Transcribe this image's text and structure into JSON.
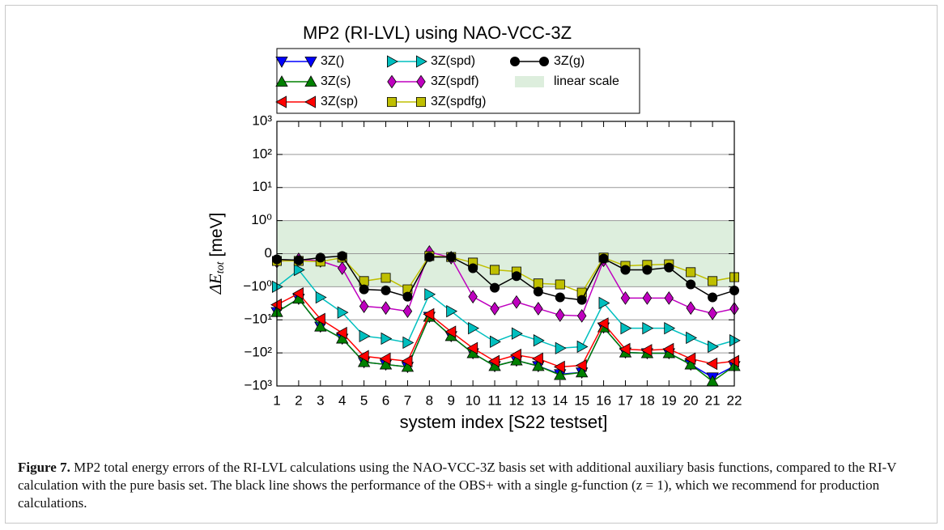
{
  "chart_data": {
    "type": "line",
    "title": "MP2 (RI-LVL) using NAO-VCC-3Z",
    "xlabel": "system index [S22 testset]",
    "ylabel": {
      "main": "ΔE",
      "sub": "tot",
      "unit": "[meV]"
    },
    "yscale": "symlog",
    "linthresh": 1,
    "grid": true,
    "x": [
      1,
      2,
      3,
      4,
      5,
      6,
      7,
      8,
      9,
      10,
      11,
      12,
      13,
      14,
      15,
      16,
      17,
      18,
      19,
      20,
      21,
      22
    ],
    "xlim": [
      1,
      22
    ],
    "xticks": [
      1,
      2,
      3,
      4,
      5,
      6,
      7,
      8,
      9,
      10,
      11,
      12,
      13,
      14,
      15,
      16,
      17,
      18,
      19,
      20,
      21,
      22
    ],
    "ylim": [
      -1000,
      1000
    ],
    "yticks": [
      {
        "value": -1000,
        "label": "−10³"
      },
      {
        "value": -100,
        "label": "−10²"
      },
      {
        "value": -10,
        "label": "−10¹"
      },
      {
        "value": -1,
        "label": "−10⁰"
      },
      0,
      {
        "value": 1,
        "label": "10⁰"
      },
      {
        "value": 10,
        "label": "10¹"
      },
      {
        "value": 100,
        "label": "10²"
      },
      {
        "value": 1000,
        "label": "10³"
      }
    ],
    "linear_region": {
      "label": "linear scale",
      "range": [
        -1,
        1
      ],
      "color": "#ddeedd"
    },
    "series": [
      {
        "name": "3Z()",
        "color": "#0000ff",
        "marker": "tri-down",
        "values": [
          -5.8,
          -2.3,
          -16,
          -37,
          -190,
          -224,
          -265,
          -8.1,
          -31,
          -102,
          -250,
          -170,
          -250,
          -440,
          -390,
          -17,
          -97,
          -102,
          -102,
          -224,
          -550,
          -250
        ]
      },
      {
        "name": "3Z(s)",
        "color": "#008000",
        "marker": "tri-up",
        "values": [
          -5.8,
          -2.3,
          -16,
          -37,
          -190,
          -224,
          -265,
          -8.1,
          -31,
          -102,
          -250,
          -170,
          -250,
          -468,
          -390,
          -17,
          -97,
          -102,
          -102,
          -224,
          -724,
          -250
        ]
      },
      {
        "name": "3Z(sp)",
        "color": "#ff0000",
        "marker": "tri-left",
        "values": [
          -3.5,
          -1.6,
          -9.5,
          -25,
          -126,
          -150,
          -178,
          -6.8,
          -23,
          -72,
          -178,
          -115,
          -150,
          -265,
          -240,
          -13,
          -77,
          -83,
          -77,
          -150,
          -213,
          -178
        ]
      },
      {
        "name": "3Z(spd)",
        "color": "#00bfbf",
        "marker": "tri-right",
        "values": [
          -1.0,
          -0.49,
          -2.1,
          -6.0,
          -31,
          -37,
          -49,
          -1.7,
          -5.5,
          -18,
          -46,
          -26,
          -42,
          -72,
          -65,
          -3.1,
          -18,
          -18,
          -18,
          -35,
          -65,
          -42
        ]
      },
      {
        "name": "3Z(spdf)",
        "color": "#bf00bf",
        "marker": "diamond",
        "values": [
          -0.24,
          -0.17,
          -0.22,
          -0.44,
          -3.9,
          -4.4,
          -5.5,
          0.05,
          -0.12,
          -2.0,
          -4.6,
          -2.9,
          -4.6,
          -7.2,
          -7.6,
          -0.2,
          -2.2,
          -2.2,
          -2.2,
          -4.4,
          -6.4,
          -4.6
        ]
      },
      {
        "name": "3Z(spdfg)",
        "color": "#bfbf00",
        "marker": "square",
        "values": [
          -0.22,
          -0.22,
          -0.24,
          -0.12,
          -0.83,
          -0.73,
          -1.2,
          -0.07,
          -0.1,
          -0.27,
          -0.49,
          -0.54,
          -0.9,
          -0.93,
          -1.5,
          -0.12,
          -0.37,
          -0.34,
          -0.32,
          -0.56,
          -0.83,
          -0.71
        ]
      },
      {
        "name": "3Z(g)",
        "color": "#000000",
        "marker": "circle",
        "values": [
          -0.17,
          -0.2,
          -0.12,
          -0.07,
          -1.2,
          -1.29,
          -2.0,
          -0.1,
          -0.1,
          -0.44,
          -1.07,
          -0.68,
          -1.4,
          -2.1,
          -2.5,
          -0.15,
          -0.49,
          -0.49,
          -0.42,
          -0.93,
          -2.1,
          -1.3
        ]
      }
    ]
  },
  "caption": {
    "label": "Figure 7.",
    "text": "MP2 total energy errors of the RI-LVL calculations using the NAO-VCC-3Z basis set with additional auxiliary basis functions, compared to the RI-V calculation with the pure basis set. The black line shows the performance of the OBS+ with a single g-function (z = 1), which we recommend for production calculations."
  }
}
